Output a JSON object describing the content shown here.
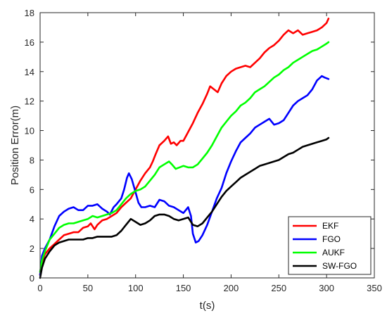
{
  "chart_data": {
    "type": "line",
    "title": "",
    "xlabel": "t(s)",
    "ylabel": "Position Error(m)",
    "xlim": [
      0,
      350
    ],
    "ylim": [
      0,
      18
    ],
    "x_ticks": [
      "0",
      "50",
      "100",
      "150",
      "200",
      "250",
      "300",
      "350"
    ],
    "y_ticks": [
      "0",
      "2",
      "4",
      "6",
      "8",
      "10",
      "12",
      "14",
      "16",
      "18"
    ],
    "grid": false,
    "legend_position": "bottom-right",
    "series": [
      {
        "name": "EKF",
        "color": "#ff0000",
        "points": [
          [
            0,
            0.2
          ],
          [
            2,
            1.1
          ],
          [
            5,
            1.6
          ],
          [
            10,
            2.0
          ],
          [
            15,
            2.3
          ],
          [
            20,
            2.6
          ],
          [
            25,
            2.9
          ],
          [
            30,
            3.0
          ],
          [
            35,
            3.1
          ],
          [
            40,
            3.1
          ],
          [
            45,
            3.4
          ],
          [
            50,
            3.5
          ],
          [
            53,
            3.7
          ],
          [
            57,
            3.3
          ],
          [
            60,
            3.6
          ],
          [
            65,
            3.9
          ],
          [
            70,
            4.0
          ],
          [
            75,
            4.2
          ],
          [
            80,
            4.4
          ],
          [
            85,
            4.8
          ],
          [
            90,
            5.1
          ],
          [
            95,
            5.4
          ],
          [
            100,
            6.0
          ],
          [
            105,
            6.6
          ],
          [
            110,
            7.1
          ],
          [
            115,
            7.5
          ],
          [
            118,
            7.9
          ],
          [
            121,
            8.4
          ],
          [
            125,
            9.0
          ],
          [
            130,
            9.3
          ],
          [
            134,
            9.6
          ],
          [
            137,
            9.1
          ],
          [
            140,
            9.2
          ],
          [
            143,
            9.0
          ],
          [
            147,
            9.3
          ],
          [
            150,
            9.3
          ],
          [
            155,
            9.9
          ],
          [
            160,
            10.5
          ],
          [
            165,
            11.2
          ],
          [
            170,
            11.8
          ],
          [
            175,
            12.5
          ],
          [
            178,
            13.0
          ],
          [
            182,
            12.8
          ],
          [
            186,
            12.6
          ],
          [
            190,
            13.2
          ],
          [
            195,
            13.7
          ],
          [
            200,
            14.0
          ],
          [
            205,
            14.2
          ],
          [
            210,
            14.3
          ],
          [
            215,
            14.4
          ],
          [
            220,
            14.3
          ],
          [
            225,
            14.6
          ],
          [
            230,
            14.9
          ],
          [
            235,
            15.3
          ],
          [
            240,
            15.6
          ],
          [
            245,
            15.8
          ],
          [
            250,
            16.1
          ],
          [
            255,
            16.5
          ],
          [
            260,
            16.8
          ],
          [
            265,
            16.6
          ],
          [
            270,
            16.8
          ],
          [
            275,
            16.5
          ],
          [
            280,
            16.6
          ],
          [
            285,
            16.7
          ],
          [
            290,
            16.8
          ],
          [
            295,
            17.0
          ],
          [
            300,
            17.3
          ],
          [
            302,
            17.6
          ]
        ]
      },
      {
        "name": "FGO",
        "color": "#0000ff",
        "points": [
          [
            0,
            0.2
          ],
          [
            2,
            1.5
          ],
          [
            5,
            2.0
          ],
          [
            10,
            2.6
          ],
          [
            15,
            3.5
          ],
          [
            20,
            4.2
          ],
          [
            25,
            4.5
          ],
          [
            30,
            4.7
          ],
          [
            35,
            4.8
          ],
          [
            40,
            4.6
          ],
          [
            45,
            4.6
          ],
          [
            50,
            4.9
          ],
          [
            55,
            4.9
          ],
          [
            60,
            5.0
          ],
          [
            65,
            4.7
          ],
          [
            70,
            4.5
          ],
          [
            73,
            4.3
          ],
          [
            77,
            4.8
          ],
          [
            80,
            5.0
          ],
          [
            85,
            5.4
          ],
          [
            88,
            6.0
          ],
          [
            91,
            6.8
          ],
          [
            93,
            7.1
          ],
          [
            96,
            6.7
          ],
          [
            100,
            5.8
          ],
          [
            103,
            5.1
          ],
          [
            106,
            4.8
          ],
          [
            110,
            4.8
          ],
          [
            115,
            4.9
          ],
          [
            120,
            4.8
          ],
          [
            125,
            5.3
          ],
          [
            130,
            5.2
          ],
          [
            135,
            4.9
          ],
          [
            140,
            4.8
          ],
          [
            145,
            4.6
          ],
          [
            150,
            4.4
          ],
          [
            155,
            4.8
          ],
          [
            158,
            4.2
          ],
          [
            160,
            3.0
          ],
          [
            163,
            2.4
          ],
          [
            166,
            2.5
          ],
          [
            170,
            2.9
          ],
          [
            175,
            3.6
          ],
          [
            180,
            4.5
          ],
          [
            185,
            5.4
          ],
          [
            190,
            6.1
          ],
          [
            195,
            7.1
          ],
          [
            200,
            7.9
          ],
          [
            205,
            8.6
          ],
          [
            210,
            9.2
          ],
          [
            215,
            9.5
          ],
          [
            220,
            9.8
          ],
          [
            225,
            10.2
          ],
          [
            230,
            10.4
          ],
          [
            235,
            10.6
          ],
          [
            240,
            10.8
          ],
          [
            245,
            10.4
          ],
          [
            250,
            10.5
          ],
          [
            255,
            10.7
          ],
          [
            260,
            11.2
          ],
          [
            265,
            11.7
          ],
          [
            270,
            12.0
          ],
          [
            275,
            12.2
          ],
          [
            280,
            12.4
          ],
          [
            285,
            12.8
          ],
          [
            290,
            13.4
          ],
          [
            295,
            13.7
          ],
          [
            298,
            13.6
          ],
          [
            302,
            13.5
          ]
        ]
      },
      {
        "name": "AUKF",
        "color": "#00ff00",
        "points": [
          [
            0,
            0.4
          ],
          [
            2,
            1.2
          ],
          [
            5,
            1.8
          ],
          [
            10,
            2.6
          ],
          [
            15,
            3.0
          ],
          [
            20,
            3.4
          ],
          [
            25,
            3.6
          ],
          [
            30,
            3.7
          ],
          [
            35,
            3.7
          ],
          [
            40,
            3.8
          ],
          [
            45,
            3.9
          ],
          [
            50,
            4.0
          ],
          [
            55,
            4.2
          ],
          [
            60,
            4.1
          ],
          [
            65,
            4.2
          ],
          [
            70,
            4.3
          ],
          [
            75,
            4.4
          ],
          [
            80,
            4.6
          ],
          [
            85,
            5.0
          ],
          [
            90,
            5.4
          ],
          [
            95,
            5.7
          ],
          [
            100,
            5.9
          ],
          [
            105,
            6.0
          ],
          [
            110,
            6.2
          ],
          [
            115,
            6.6
          ],
          [
            120,
            7.0
          ],
          [
            125,
            7.5
          ],
          [
            130,
            7.7
          ],
          [
            135,
            7.9
          ],
          [
            138,
            7.7
          ],
          [
            142,
            7.4
          ],
          [
            146,
            7.5
          ],
          [
            150,
            7.6
          ],
          [
            155,
            7.5
          ],
          [
            160,
            7.5
          ],
          [
            165,
            7.7
          ],
          [
            170,
            8.1
          ],
          [
            175,
            8.5
          ],
          [
            180,
            9.0
          ],
          [
            185,
            9.6
          ],
          [
            190,
            10.2
          ],
          [
            195,
            10.6
          ],
          [
            200,
            11.0
          ],
          [
            205,
            11.3
          ],
          [
            210,
            11.7
          ],
          [
            215,
            11.9
          ],
          [
            220,
            12.2
          ],
          [
            225,
            12.6
          ],
          [
            230,
            12.8
          ],
          [
            235,
            13.0
          ],
          [
            240,
            13.3
          ],
          [
            245,
            13.6
          ],
          [
            250,
            13.8
          ],
          [
            255,
            14.1
          ],
          [
            260,
            14.3
          ],
          [
            265,
            14.6
          ],
          [
            270,
            14.8
          ],
          [
            275,
            15.0
          ],
          [
            280,
            15.2
          ],
          [
            285,
            15.4
          ],
          [
            290,
            15.5
          ],
          [
            295,
            15.7
          ],
          [
            300,
            15.9
          ],
          [
            302,
            16.0
          ]
        ]
      },
      {
        "name": "SW-FGO",
        "color": "#000000",
        "points": [
          [
            0,
            0.0
          ],
          [
            2,
            0.7
          ],
          [
            5,
            1.3
          ],
          [
            10,
            1.8
          ],
          [
            15,
            2.2
          ],
          [
            20,
            2.4
          ],
          [
            25,
            2.5
          ],
          [
            30,
            2.6
          ],
          [
            35,
            2.6
          ],
          [
            40,
            2.6
          ],
          [
            45,
            2.6
          ],
          [
            50,
            2.7
          ],
          [
            55,
            2.7
          ],
          [
            60,
            2.8
          ],
          [
            65,
            2.8
          ],
          [
            70,
            2.8
          ],
          [
            75,
            2.8
          ],
          [
            80,
            2.9
          ],
          [
            85,
            3.2
          ],
          [
            90,
            3.6
          ],
          [
            95,
            4.0
          ],
          [
            100,
            3.8
          ],
          [
            105,
            3.6
          ],
          [
            110,
            3.7
          ],
          [
            115,
            3.9
          ],
          [
            120,
            4.2
          ],
          [
            125,
            4.3
          ],
          [
            130,
            4.3
          ],
          [
            135,
            4.2
          ],
          [
            140,
            4.0
          ],
          [
            145,
            3.9
          ],
          [
            150,
            4.0
          ],
          [
            155,
            4.1
          ],
          [
            160,
            3.6
          ],
          [
            165,
            3.5
          ],
          [
            170,
            3.7
          ],
          [
            175,
            4.1
          ],
          [
            180,
            4.5
          ],
          [
            185,
            5.0
          ],
          [
            190,
            5.5
          ],
          [
            195,
            5.9
          ],
          [
            200,
            6.2
          ],
          [
            205,
            6.5
          ],
          [
            210,
            6.8
          ],
          [
            215,
            7.0
          ],
          [
            220,
            7.2
          ],
          [
            225,
            7.4
          ],
          [
            230,
            7.6
          ],
          [
            235,
            7.7
          ],
          [
            240,
            7.8
          ],
          [
            245,
            7.9
          ],
          [
            250,
            8.0
          ],
          [
            255,
            8.2
          ],
          [
            260,
            8.4
          ],
          [
            265,
            8.5
          ],
          [
            270,
            8.7
          ],
          [
            275,
            8.9
          ],
          [
            280,
            9.0
          ],
          [
            285,
            9.1
          ],
          [
            290,
            9.2
          ],
          [
            295,
            9.3
          ],
          [
            300,
            9.4
          ],
          [
            302,
            9.5
          ]
        ]
      }
    ]
  }
}
